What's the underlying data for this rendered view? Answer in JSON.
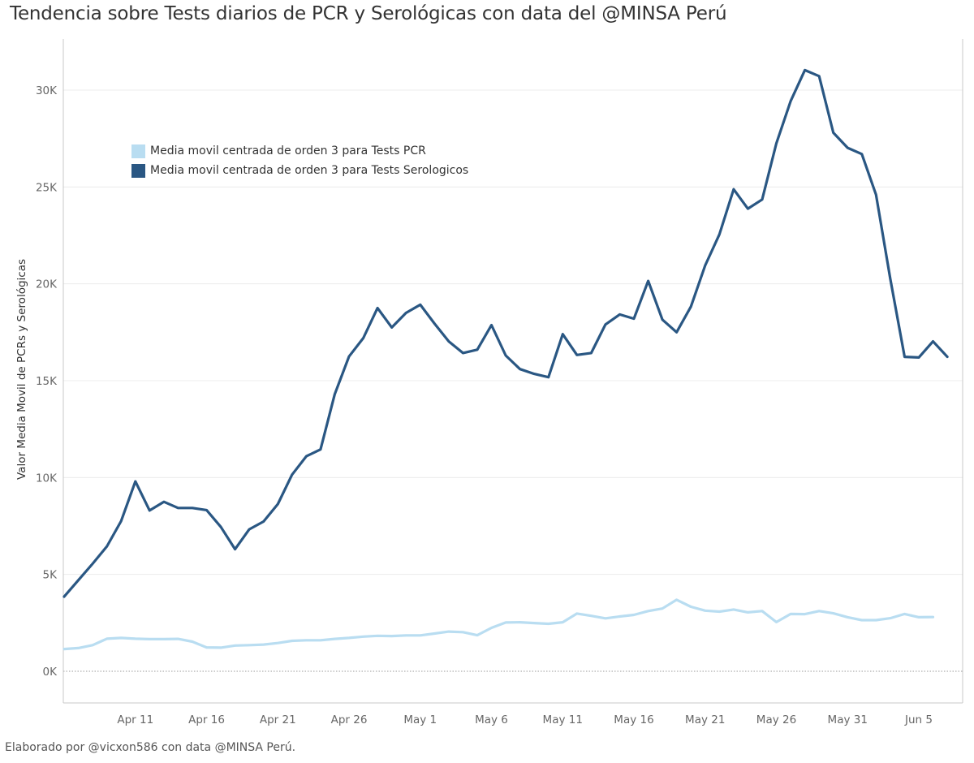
{
  "title": "Tendencia sobre Tests diarios de PCR y Serológicas con data del @MINSA Perú",
  "footer": "Elaborado por @vicxon586 con data @MINSA Perú.",
  "chart_data": {
    "type": "line",
    "ylabel": "Valor Media Movil de PCRs y Serológicas",
    "ylim": [
      0,
      33000
    ],
    "yticks": [
      0,
      5000,
      10000,
      15000,
      20000,
      25000,
      30000
    ],
    "ytick_labels": [
      "0K",
      "5K",
      "10K",
      "15K",
      "20K",
      "25K",
      "30K"
    ],
    "x_start": "2020-04-06",
    "xtick_labels": [
      "Apr 11",
      "Apr 16",
      "Apr 21",
      "Apr 26",
      "May 1",
      "May 6",
      "May 11",
      "May 16",
      "May 21",
      "May 26",
      "May 31",
      "Jun 5"
    ],
    "xtick_dates": [
      "2020-04-11",
      "2020-04-16",
      "2020-04-21",
      "2020-04-26",
      "2020-05-01",
      "2020-05-06",
      "2020-05-11",
      "2020-05-16",
      "2020-05-21",
      "2020-05-26",
      "2020-05-31",
      "2020-06-05"
    ],
    "grid": true,
    "legend_position": "top-left",
    "series": [
      {
        "name": "Media movil centrada de orden 3 para Tests PCR",
        "color": "#b9ddf1",
        "values": [
          1150,
          1200,
          1350,
          1680,
          1720,
          1680,
          1660,
          1660,
          1670,
          1530,
          1230,
          1220,
          1330,
          1350,
          1380,
          1460,
          1570,
          1600,
          1600,
          1670,
          1720,
          1790,
          1830,
          1820,
          1850,
          1850,
          1950,
          2050,
          2020,
          1860,
          2240,
          2520,
          2530,
          2490,
          2450,
          2530,
          2980,
          2860,
          2730,
          2830,
          2910,
          3110,
          3240,
          3690,
          3330,
          3130,
          3080,
          3190,
          3040,
          3110,
          2540,
          2960,
          2950,
          3110,
          2990,
          2790,
          2640,
          2640,
          2740,
          2960,
          2790,
          2800
        ]
      },
      {
        "name": "Media movil centrada de orden 3 para Tests Serologicos",
        "color": "#2a5783",
        "values": [
          3850,
          4700,
          5550,
          6450,
          7750,
          9800,
          8300,
          8750,
          8430,
          8430,
          8320,
          7450,
          6300,
          7330,
          7730,
          8630,
          10150,
          11100,
          11450,
          14300,
          16250,
          17200,
          18750,
          17750,
          18500,
          18920,
          17950,
          17030,
          16430,
          16600,
          17870,
          16300,
          15600,
          15350,
          15180,
          17400,
          16330,
          16430,
          17900,
          18420,
          18200,
          20150,
          18150,
          17500,
          18820,
          20950,
          22550,
          24880,
          23880,
          24350,
          27250,
          29430,
          31030,
          30720,
          27800,
          27020,
          26700,
          24600,
          20250,
          16230,
          16200,
          17030,
          16230
        ]
      }
    ]
  }
}
